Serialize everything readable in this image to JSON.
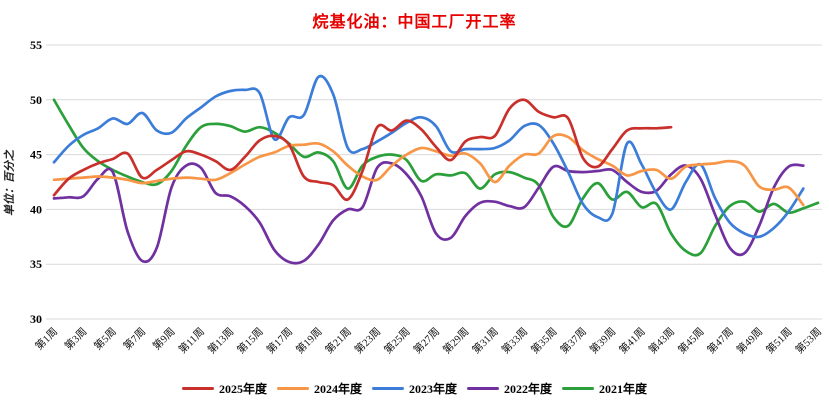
{
  "title": {
    "text": "烷基化油：中国工厂开工率",
    "color": "#e60000"
  },
  "y_axis": {
    "unit_label": "单位：百分之",
    "min": 30,
    "max": 55,
    "step": 5,
    "tick_labels": [
      "30",
      "35",
      "40",
      "45",
      "50",
      "55"
    ]
  },
  "x_axis": {
    "tick_labels": [
      "第1周",
      "第3周",
      "第5周",
      "第7周",
      "第9周",
      "第11周",
      "第13周",
      "第15周",
      "第17周",
      "第19周",
      "第21周",
      "第23周",
      "第25周",
      "第27周",
      "第29周",
      "第31周",
      "第33周",
      "第35周",
      "第37周",
      "第39周",
      "第41周",
      "第43周",
      "第45周",
      "第47周",
      "第49周",
      "第51周",
      "第53周"
    ],
    "weeks_total": 53
  },
  "grid_color": "#d9d9d9",
  "chart_data": {
    "type": "line",
    "title": "烷基化油：中国工厂开工率",
    "xlabel": "",
    "ylabel": "单位：百分之",
    "ylim": [
      30,
      55
    ],
    "x_categories_format": "第N周 (N = 1..53)",
    "legend_position": "bottom",
    "grid": "horizontal-only",
    "series": [
      {
        "name": "2025年度",
        "color": "#c9302c",
        "values": [
          41.3,
          42.8,
          43.6,
          44.2,
          44.6,
          45.1,
          42.9,
          43.6,
          44.5,
          45.3,
          45.0,
          44.4,
          43.6,
          44.8,
          46.3,
          46.7,
          45.9,
          43.0,
          42.5,
          42.2,
          40.9,
          43.5,
          47.5,
          47.2,
          48.1,
          47.3,
          45.7,
          44.5,
          46.2,
          46.6,
          46.7,
          49.2,
          50.0,
          48.9,
          48.4,
          48.3,
          44.7,
          43.9,
          45.5,
          47.2,
          47.4,
          47.4,
          47.5
        ]
      },
      {
        "name": "2024年度",
        "color": "#f79646",
        "values": [
          42.7,
          42.8,
          42.9,
          43.0,
          42.9,
          42.7,
          42.4,
          42.6,
          42.8,
          42.9,
          42.8,
          42.7,
          43.3,
          44.1,
          44.8,
          45.2,
          45.8,
          45.9,
          46.0,
          45.3,
          44.0,
          43.0,
          42.7,
          44.0,
          45.0,
          45.6,
          45.3,
          44.9,
          45.1,
          44.2,
          42.5,
          44.0,
          45.0,
          45.1,
          46.7,
          46.6,
          45.4,
          44.6,
          44.0,
          43.1,
          43.5,
          43.6,
          42.8,
          43.9,
          44.1,
          44.2,
          44.4,
          44.0,
          42.1,
          41.8,
          42.0,
          40.4
        ]
      },
      {
        "name": "2023年度",
        "color": "#3b7dd8",
        "values": [
          44.3,
          45.8,
          46.8,
          47.4,
          48.3,
          47.8,
          48.8,
          47.2,
          47.0,
          48.3,
          49.3,
          50.3,
          50.8,
          50.9,
          50.6,
          46.4,
          48.4,
          48.6,
          52.1,
          50.5,
          45.6,
          45.5,
          46.2,
          47.0,
          47.9,
          48.4,
          47.6,
          45.3,
          45.5,
          45.5,
          45.6,
          46.3,
          47.6,
          47.7,
          46.0,
          43.4,
          40.5,
          39.3,
          39.6,
          46.0,
          44.1,
          41.5,
          40.0,
          42.5,
          44.1,
          41.0,
          38.8,
          37.8,
          37.5,
          38.3,
          39.8,
          41.9
        ]
      },
      {
        "name": "2022年度",
        "color": "#7030a0",
        "values": [
          41.0,
          41.1,
          41.2,
          42.8,
          43.4,
          38.0,
          35.3,
          36.5,
          42.0,
          44.0,
          43.8,
          41.5,
          41.2,
          40.3,
          38.8,
          36.3,
          35.2,
          35.3,
          36.8,
          39.0,
          40.0,
          40.2,
          43.8,
          44.2,
          43.2,
          41.2,
          37.8,
          37.4,
          39.4,
          40.6,
          40.7,
          40.3,
          40.2,
          42.0,
          43.9,
          43.5,
          43.4,
          43.5,
          43.6,
          42.5,
          41.6,
          41.7,
          43.2,
          44.0,
          42.8,
          39.5,
          36.5,
          36.0,
          38.5,
          42.0,
          43.9,
          44.0
        ]
      },
      {
        "name": "2021年度",
        "color": "#2ba03a",
        "values": [
          50.0,
          47.7,
          45.6,
          44.4,
          43.6,
          43.0,
          42.5,
          42.3,
          43.5,
          45.8,
          47.5,
          47.8,
          47.6,
          47.1,
          47.5,
          47.0,
          46.0,
          44.8,
          45.2,
          44.4,
          41.9,
          44.0,
          44.8,
          45.0,
          44.5,
          42.6,
          43.2,
          43.1,
          43.3,
          41.9,
          43.2,
          43.4,
          42.9,
          42.2,
          39.3,
          38.5,
          41.0,
          42.4,
          40.9,
          41.6,
          40.2,
          40.5,
          37.8,
          36.2,
          36.0,
          38.5,
          40.3,
          40.7,
          39.8,
          40.5,
          39.7,
          40.1,
          40.6
        ]
      }
    ]
  },
  "legend": [
    {
      "label": "2025年度",
      "color": "#c9302c"
    },
    {
      "label": "2024年度",
      "color": "#f79646"
    },
    {
      "label": "2023年度",
      "color": "#3b7dd8"
    },
    {
      "label": "2022年度",
      "color": "#7030a0"
    },
    {
      "label": "2021年度",
      "color": "#2ba03a"
    }
  ]
}
